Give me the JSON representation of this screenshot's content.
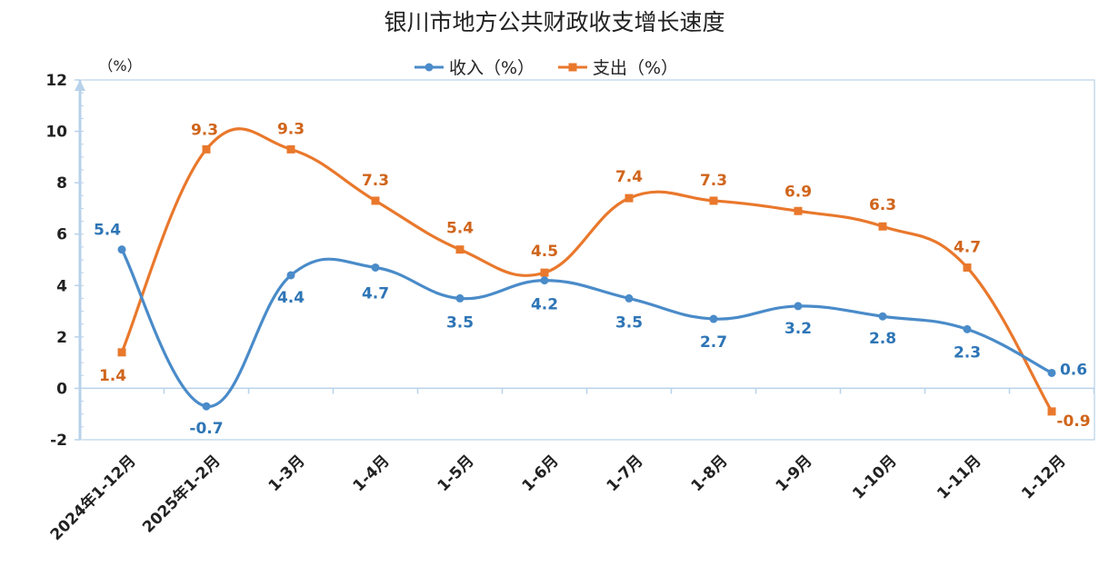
{
  "chart_data": {
    "type": "line",
    "title": "银川市地方公共财政收支增长速度",
    "unit_label": "（%）",
    "categories": [
      "2024年1-12月",
      "2025年1-2月",
      "1-3月",
      "1-4月",
      "1-5月",
      "1-6月",
      "1-7月",
      "1-8月",
      "1-9月",
      "1-10月",
      "1-11月",
      "1-12月"
    ],
    "series": [
      {
        "name": "收入（%）",
        "color": "#4A8BC9",
        "marker": "circle",
        "values": [
          5.4,
          -0.7,
          4.4,
          4.7,
          3.5,
          4.2,
          3.5,
          2.7,
          3.2,
          2.8,
          2.3,
          0.6
        ],
        "labels": [
          "5.4",
          "-0.7",
          "4.4",
          "4.7",
          "3.5",
          "4.2",
          "3.5",
          "2.7",
          "3.2",
          "2.8",
          "2.3",
          "0.6"
        ]
      },
      {
        "name": "支出（%）",
        "color": "#E9782C",
        "marker": "square",
        "values": [
          1.4,
          9.3,
          9.3,
          7.3,
          5.4,
          4.5,
          7.4,
          7.3,
          6.9,
          6.3,
          4.7,
          -0.9
        ],
        "labels": [
          "1.4",
          "9.3",
          "9.3",
          "7.3",
          "5.4",
          "4.5",
          "7.4",
          "7.3",
          "6.9",
          "6.3",
          "4.7",
          "-0.9"
        ]
      }
    ],
    "y_ticks": [
      12,
      10,
      8,
      6,
      4,
      2,
      0,
      -2
    ],
    "y_tick_labels": [
      "12",
      "10",
      "8",
      "6",
      "4",
      "2",
      "0",
      "-2"
    ],
    "ylim": [
      -2,
      12
    ],
    "legend_position": "top-center",
    "grid": false,
    "axis_color": "#B7D2EA",
    "frame_color": "#A9C8E6",
    "label_color_series1": "#2E75B6",
    "label_color_series2": "#D0651C"
  }
}
